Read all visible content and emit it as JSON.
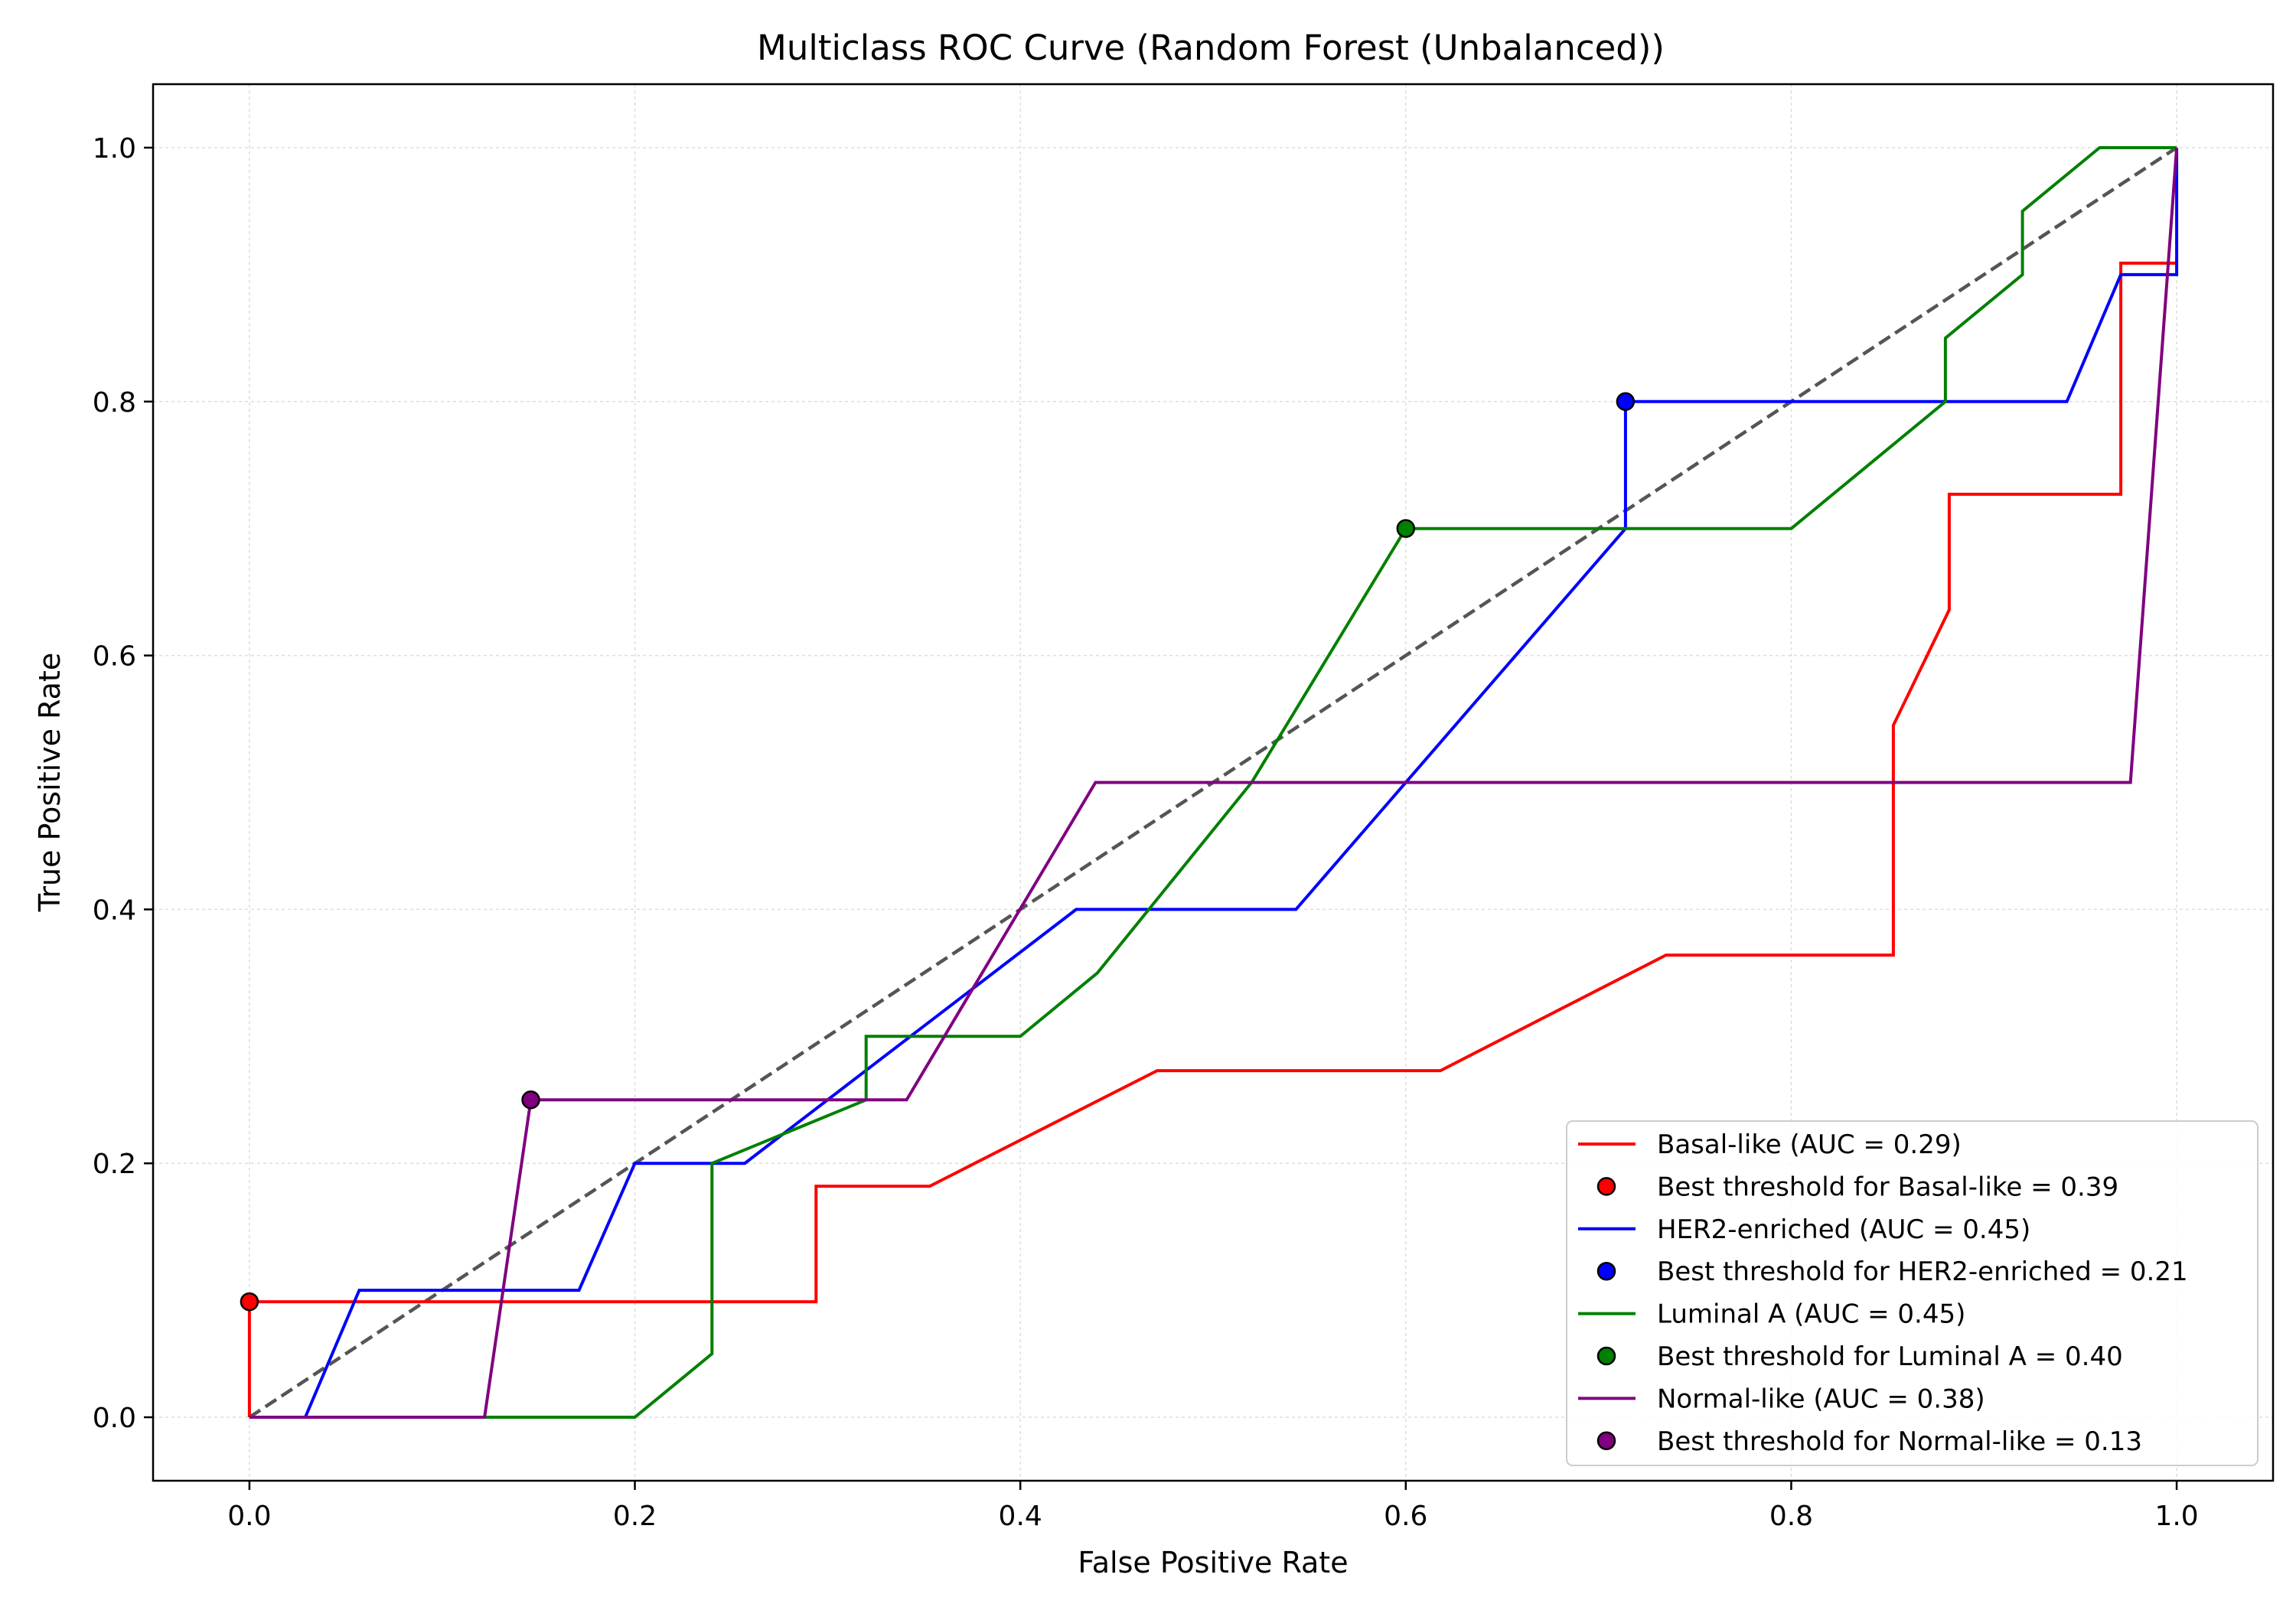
{
  "chart_data": {
    "type": "line",
    "title": "Multiclass ROC Curve (Random Forest (Unbalanced))",
    "xlabel": "False Positive Rate",
    "ylabel": "True Positive Rate",
    "xlim": [
      -0.05,
      1.05
    ],
    "ylim": [
      -0.05,
      1.05
    ],
    "xticks": [
      0.0,
      0.2,
      0.4,
      0.6,
      0.8,
      1.0
    ],
    "yticks": [
      0.0,
      0.2,
      0.4,
      0.6,
      0.8,
      1.0
    ],
    "xtick_labels": [
      "0.0",
      "0.2",
      "0.4",
      "0.6",
      "0.8",
      "1.0"
    ],
    "ytick_labels": [
      "0.0",
      "0.2",
      "0.4",
      "0.6",
      "0.8",
      "1.0"
    ],
    "grid": true,
    "legend_position": "lower-right",
    "diagonal": {
      "x": [
        0,
        1
      ],
      "y": [
        0,
        1
      ],
      "color": "#555555",
      "style": "dashed"
    },
    "series": [
      {
        "name": "Basal-like (AUC = 0.29)",
        "color": "#ff0000",
        "x": [
          0,
          0,
          0.294,
          0.294,
          0.353,
          0.471,
          0.618,
          0.735,
          0.853,
          0.853,
          0.882,
          0.882,
          0.971,
          0.971,
          1.0
        ],
        "y": [
          0,
          0.091,
          0.091,
          0.182,
          0.182,
          0.273,
          0.273,
          0.364,
          0.364,
          0.545,
          0.636,
          0.727,
          0.727,
          0.909,
          0.909
        ],
        "best": {
          "x": 0.0,
          "y": 0.091,
          "label": "Best threshold for Basal-like = 0.39"
        }
      },
      {
        "name": "HER2-enriched (AUC = 0.45)",
        "color": "#0000ff",
        "x": [
          0,
          0.029,
          0.057,
          0.171,
          0.2,
          0.257,
          0.429,
          0.543,
          0.714,
          0.714,
          0.943,
          0.971,
          1.0,
          1.0
        ],
        "y": [
          0,
          0,
          0.1,
          0.1,
          0.2,
          0.2,
          0.4,
          0.4,
          0.7,
          0.8,
          0.8,
          0.9,
          0.9,
          1.0
        ],
        "best": {
          "x": 0.714,
          "y": 0.8,
          "label": "Best threshold for HER2-enriched = 0.21"
        }
      },
      {
        "name": "Luminal A (AUC = 0.45)",
        "color": "#008000",
        "x": [
          0,
          0.2,
          0.24,
          0.24,
          0.32,
          0.32,
          0.4,
          0.44,
          0.52,
          0.6,
          0.8,
          0.88,
          0.88,
          0.92,
          0.92,
          0.96,
          1.0
        ],
        "y": [
          0,
          0,
          0.05,
          0.2,
          0.25,
          0.3,
          0.3,
          0.35,
          0.5,
          0.7,
          0.7,
          0.8,
          0.85,
          0.9,
          0.95,
          1.0,
          1.0
        ],
        "best": {
          "x": 0.6,
          "y": 0.7,
          "label": "Best threshold for Luminal A = 0.40"
        }
      },
      {
        "name": "Normal-like (AUC = 0.38)",
        "color": "#800080",
        "x": [
          0,
          0.122,
          0.146,
          0.341,
          0.439,
          0.976,
          1.0
        ],
        "y": [
          0,
          0,
          0.25,
          0.25,
          0.5,
          0.5,
          1.0
        ],
        "best": {
          "x": 0.146,
          "y": 0.25,
          "label": "Best threshold for Normal-like = 0.13"
        }
      }
    ]
  }
}
